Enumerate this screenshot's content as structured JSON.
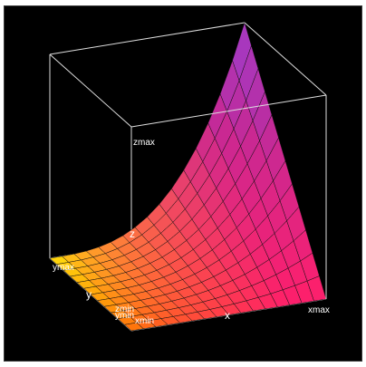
{
  "chart_data": {
    "type": "surface",
    "function": "z = x^3 * y",
    "grid": {
      "x_steps": 16,
      "y_steps": 12
    },
    "axes": {
      "x": {
        "label": "x",
        "min_label": "xmin",
        "max_label": "xmax"
      },
      "y": {
        "label": "y",
        "min_label": "ymin",
        "max_label": "ymax"
      },
      "z": {
        "label": "z",
        "min_label": "zmin",
        "max_label": "zmax"
      }
    },
    "colors": {
      "background": "#000000",
      "box": "#dddddd",
      "mesh": "#111111",
      "ramp": [
        "#ff7a00",
        "#ffee00",
        "#ff1f6a",
        "#c02a9a",
        "#9b3fd0"
      ]
    }
  }
}
